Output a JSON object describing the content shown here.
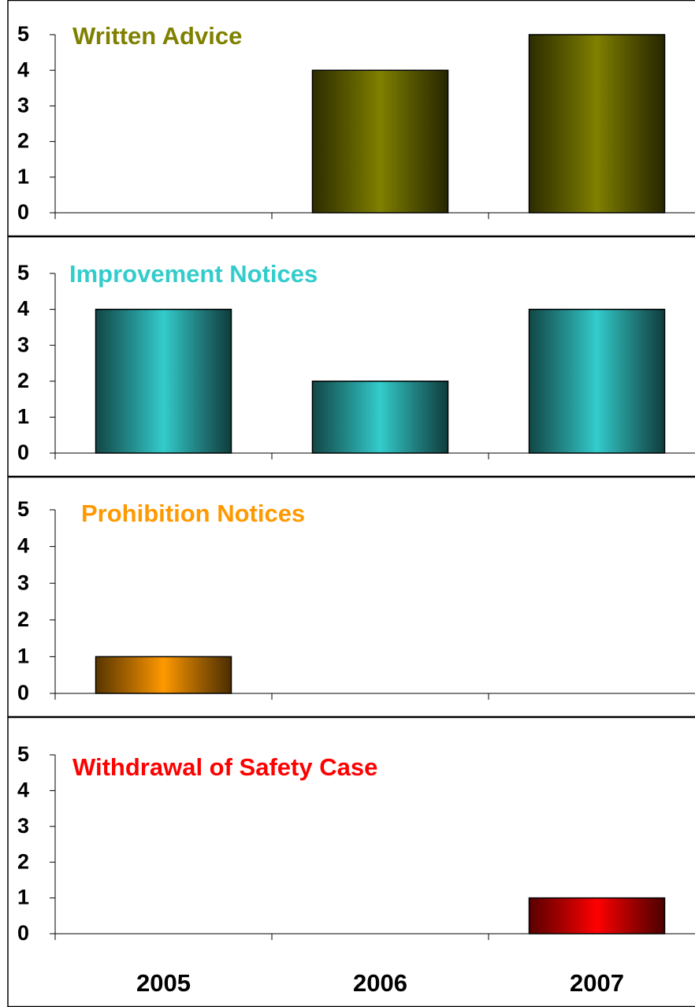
{
  "chart_data": [
    {
      "type": "bar",
      "title": "Written Advice",
      "values": [
        0,
        4,
        5
      ],
      "color": "#808000",
      "ylim": [
        0,
        5
      ],
      "yticks": [
        0,
        1,
        2,
        3,
        4,
        5
      ]
    },
    {
      "type": "bar",
      "title": "Improvement Notices",
      "values": [
        4,
        2,
        4
      ],
      "color": "#33cccc",
      "ylim": [
        0,
        5
      ],
      "yticks": [
        0,
        1,
        2,
        3,
        4,
        5
      ]
    },
    {
      "type": "bar",
      "title": "Prohibition Notices",
      "values": [
        1,
        0,
        0
      ],
      "color": "#ff9900",
      "ylim": [
        0,
        5
      ],
      "yticks": [
        0,
        1,
        2,
        3,
        4,
        5
      ]
    },
    {
      "type": "bar",
      "title": "Withdrawal of Safety Case",
      "values": [
        0,
        0,
        1
      ],
      "color": "#ff0000",
      "ylim": [
        0,
        5
      ],
      "yticks": [
        0,
        1,
        2,
        3,
        4,
        5
      ],
      "categories": [
        "2005",
        "2006",
        "2007"
      ]
    }
  ]
}
